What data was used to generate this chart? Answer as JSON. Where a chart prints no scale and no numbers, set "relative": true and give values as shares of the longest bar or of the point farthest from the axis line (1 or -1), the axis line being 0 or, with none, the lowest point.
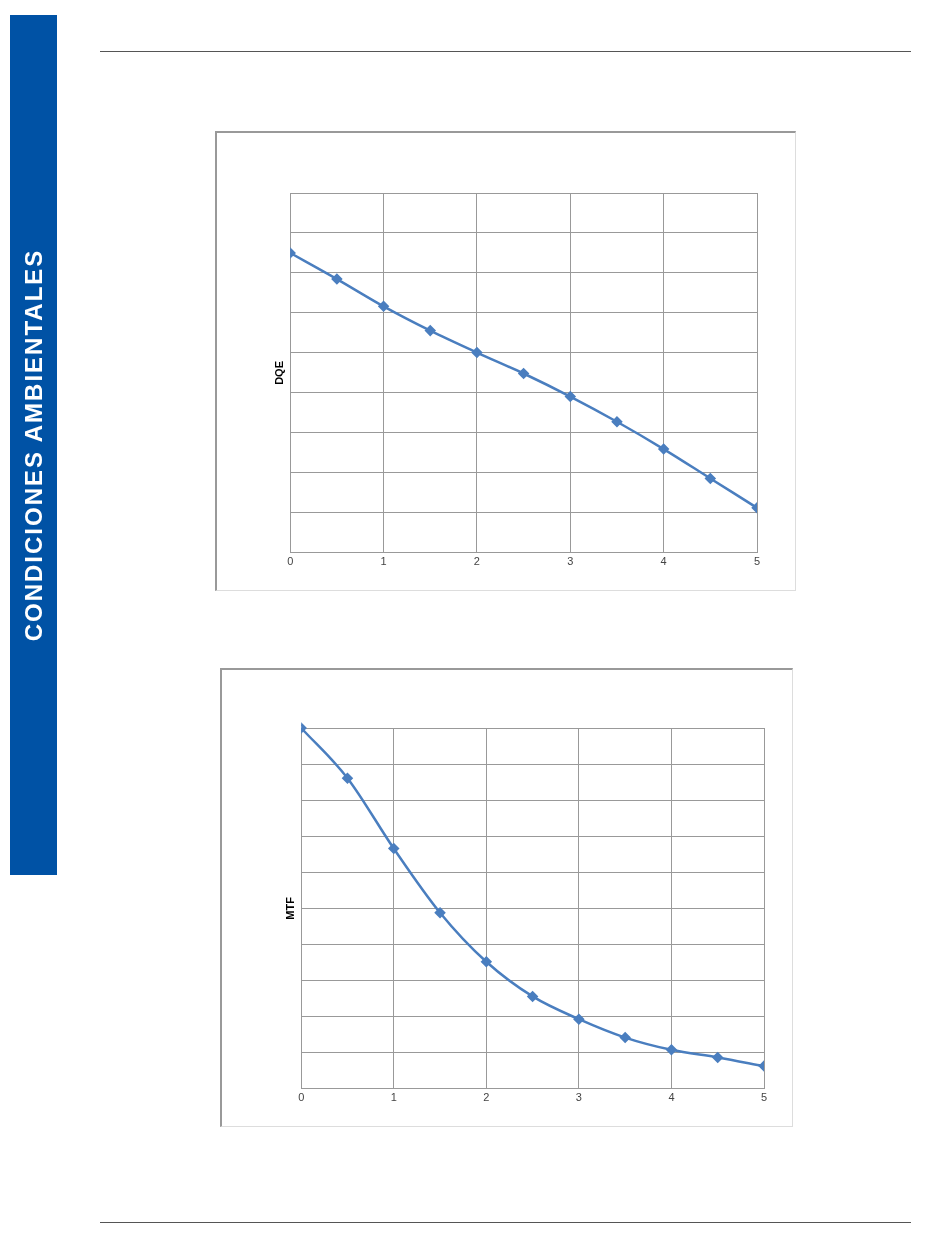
{
  "chart_data": [
    {
      "type": "other",
      "title": "CONDICIONES AMBIENTALES",
      "color": "#0052a5"
    },
    {
      "type": "line",
      "ylabel": "DQE",
      "relative": true,
      "x": [
        0,
        0.5,
        1,
        1.5,
        2,
        2.5,
        3,
        3.5,
        4,
        4.5,
        5
      ],
      "xlim": [
        0,
        5
      ],
      "xticks": [
        0,
        1,
        2,
        3,
        4,
        5
      ],
      "grid": true,
      "marker": "diamond",
      "line_style": "solid",
      "series": [
        {
          "color": "#4a7ebf",
          "values": [
            1,
            0.913,
            0.822,
            0.741,
            0.668,
            0.598,
            0.521,
            0.437,
            0.346,
            0.248,
            0.15
          ]
        }
      ]
    },
    {
      "type": "line",
      "ylabel": "MTF",
      "relative": true,
      "x": [
        0,
        0.5,
        1,
        1.5,
        2,
        2.5,
        3,
        3.5,
        4,
        4.5,
        5
      ],
      "xlim": [
        0,
        5
      ],
      "xticks": [
        0,
        1,
        2,
        3,
        4,
        5
      ],
      "grid": true,
      "marker": "diamond",
      "line_style": "solid",
      "series": [
        {
          "color": "#4a7ebf",
          "values": [
            1,
            0.861,
            0.666,
            0.488,
            0.352,
            0.256,
            0.193,
            0.142,
            0.108,
            0.087,
            0.063
          ]
        }
      ]
    }
  ]
}
